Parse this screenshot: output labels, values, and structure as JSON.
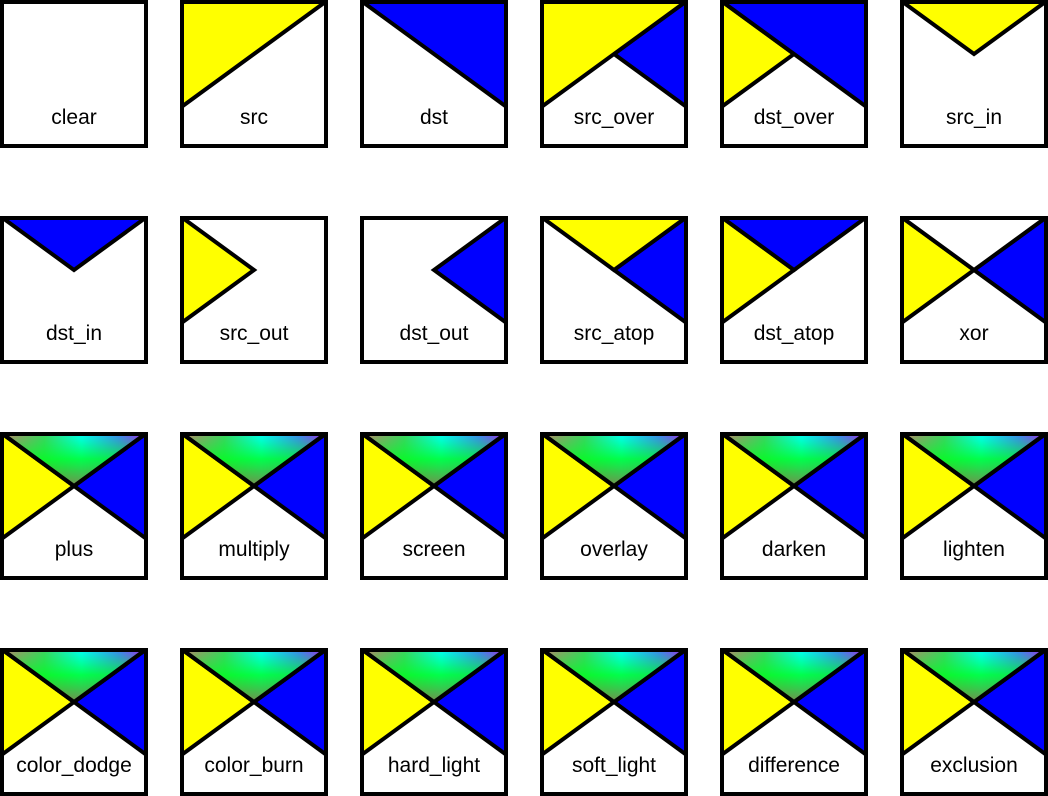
{
  "colors": {
    "src": "#ffff00",
    "dst": "#0000ff",
    "background": "#ffffff",
    "stroke": "#000000"
  },
  "tiles": [
    {
      "label": "clear",
      "regions": {
        "src_only": null,
        "dst_only": null,
        "both": null
      }
    },
    {
      "label": "src",
      "regions": {
        "src_only": "src",
        "dst_only": null,
        "both": "src"
      }
    },
    {
      "label": "dst",
      "regions": {
        "src_only": null,
        "dst_only": "dst",
        "both": "dst"
      }
    },
    {
      "label": "src_over",
      "regions": {
        "src_only": "src",
        "dst_only": "dst",
        "both": "src"
      }
    },
    {
      "label": "dst_over",
      "regions": {
        "src_only": "src",
        "dst_only": "dst",
        "both": "dst"
      }
    },
    {
      "label": "src_in",
      "regions": {
        "src_only": null,
        "dst_only": null,
        "both": "src"
      }
    },
    {
      "label": "dst_in",
      "regions": {
        "src_only": null,
        "dst_only": null,
        "both": "dst"
      }
    },
    {
      "label": "src_out",
      "regions": {
        "src_only": "src",
        "dst_only": null,
        "both": null
      }
    },
    {
      "label": "dst_out",
      "regions": {
        "src_only": null,
        "dst_only": "dst",
        "both": null
      }
    },
    {
      "label": "src_atop",
      "regions": {
        "src_only": null,
        "dst_only": "dst",
        "both": "src"
      }
    },
    {
      "label": "dst_atop",
      "regions": {
        "src_only": "src",
        "dst_only": null,
        "both": "dst"
      }
    },
    {
      "label": "xor",
      "regions": {
        "src_only": "src",
        "dst_only": "dst",
        "both": "none"
      }
    },
    {
      "label": "plus",
      "regions": {
        "src_only": "src",
        "dst_only": "dst",
        "both": "blend"
      }
    },
    {
      "label": "multiply",
      "regions": {
        "src_only": "src",
        "dst_only": "dst",
        "both": "blend"
      }
    },
    {
      "label": "screen",
      "regions": {
        "src_only": "src",
        "dst_only": "dst",
        "both": "blend"
      }
    },
    {
      "label": "overlay",
      "regions": {
        "src_only": "src",
        "dst_only": "dst",
        "both": "blend"
      }
    },
    {
      "label": "darken",
      "regions": {
        "src_only": "src",
        "dst_only": "dst",
        "both": "blend"
      }
    },
    {
      "label": "lighten",
      "regions": {
        "src_only": "src",
        "dst_only": "dst",
        "both": "blend"
      }
    },
    {
      "label": "color_dodge",
      "regions": {
        "src_only": "src",
        "dst_only": "dst",
        "both": "blend"
      }
    },
    {
      "label": "color_burn",
      "regions": {
        "src_only": "src",
        "dst_only": "dst",
        "both": "blend"
      }
    },
    {
      "label": "hard_light",
      "regions": {
        "src_only": "src",
        "dst_only": "dst",
        "both": "blend"
      }
    },
    {
      "label": "soft_light",
      "regions": {
        "src_only": "src",
        "dst_only": "dst",
        "both": "blend"
      }
    },
    {
      "label": "difference",
      "regions": {
        "src_only": "src",
        "dst_only": "dst",
        "both": "blend"
      }
    },
    {
      "label": "exclusion",
      "regions": {
        "src_only": "src",
        "dst_only": "dst",
        "both": "blend"
      }
    }
  ]
}
